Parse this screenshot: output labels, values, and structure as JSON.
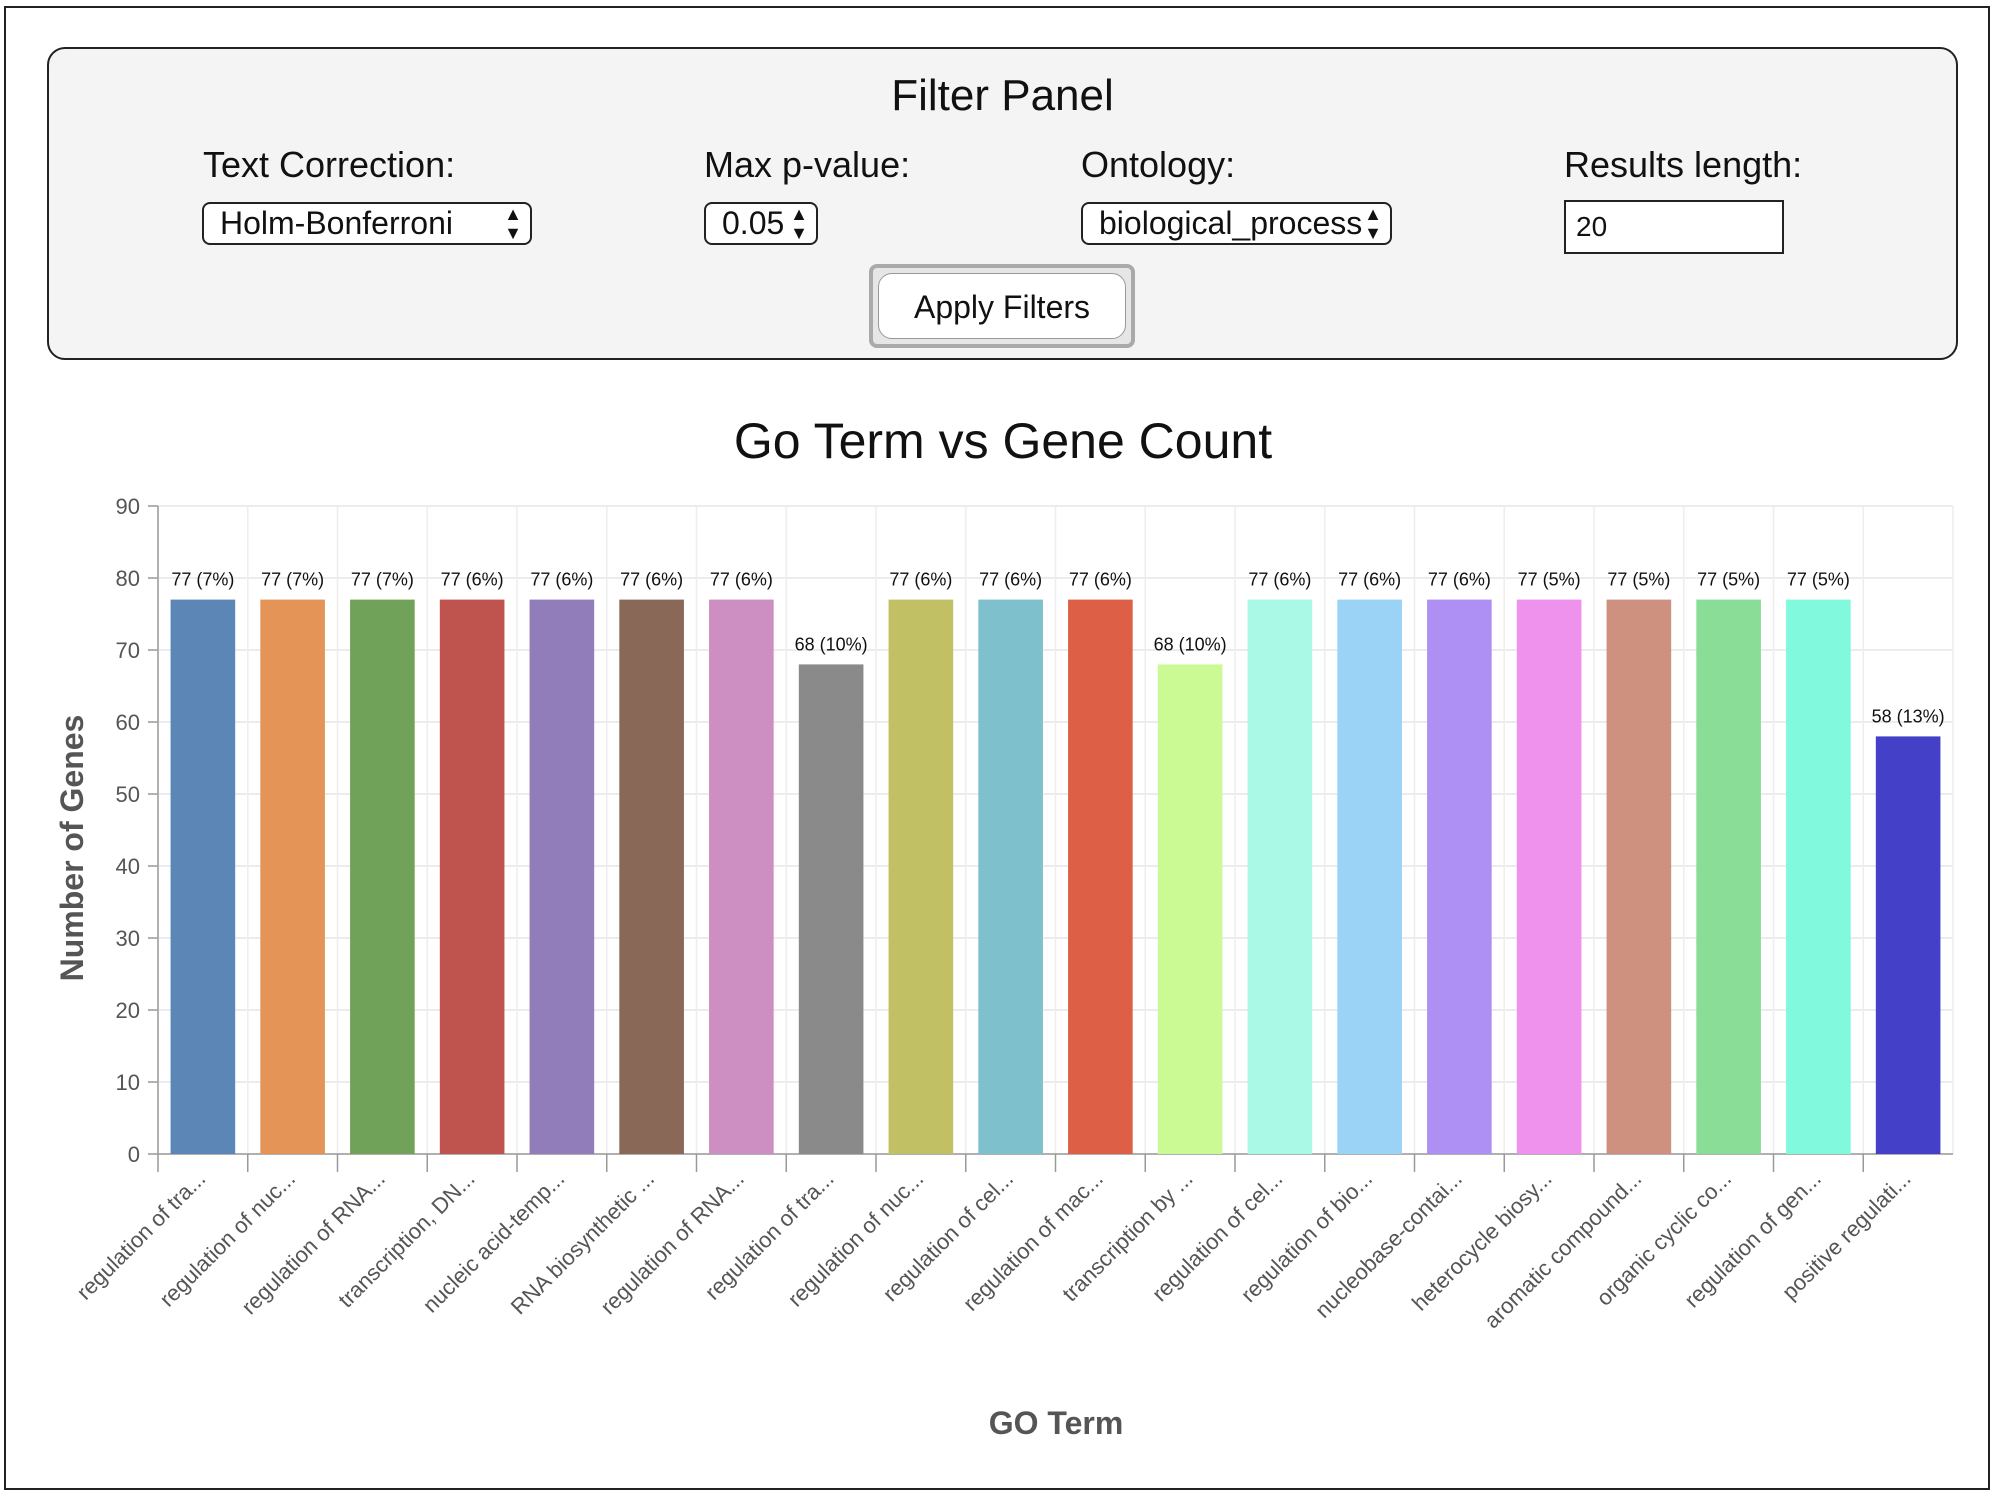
{
  "filter_panel": {
    "title": "Filter Panel",
    "text_correction": {
      "label": "Text Correction:",
      "value": "Holm-Bonferroni"
    },
    "max_p_value": {
      "label": "Max p-value:",
      "value": "0.05"
    },
    "ontology": {
      "label": "Ontology:",
      "value": "biological_process"
    },
    "results_length": {
      "label": "Results length:",
      "value": "20"
    },
    "apply_label": "Apply Filters",
    "arrow_up": "▲",
    "arrow_down": "▼"
  },
  "chart_data": {
    "type": "bar",
    "title": "Go Term vs Gene Count",
    "xlabel": "GO Term",
    "ylabel": "Number of Genes",
    "ylim": [
      0,
      90
    ],
    "yticks": [
      0,
      10,
      20,
      30,
      40,
      50,
      60,
      70,
      80,
      90
    ],
    "grid": true,
    "categories": [
      "regulation of tra...",
      "regulation of nuc...",
      "regulation of RNA...",
      "transcription, DN...",
      "nucleic acid-temp...",
      "RNA biosynthetic ...",
      "regulation of RNA...",
      "regulation of tra...",
      "regulation of nuc...",
      "regulation of cel...",
      "regulation of mac...",
      "transcription by ...",
      "regulation of cel...",
      "regulation of bio...",
      "nucleobase-contai...",
      "heterocycle biosy...",
      "aromatic compound...",
      "organic cyclic co...",
      "regulation of gen...",
      "positive regulati..."
    ],
    "values": [
      77,
      77,
      77,
      77,
      77,
      77,
      77,
      68,
      77,
      77,
      77,
      68,
      77,
      77,
      77,
      77,
      77,
      77,
      77,
      58
    ],
    "data_labels": [
      "77 (7%)",
      "77 (7%)",
      "77 (7%)",
      "77 (6%)",
      "77 (6%)",
      "77 (6%)",
      "77 (6%)",
      "68 (10%)",
      "77 (6%)",
      "77 (6%)",
      "77 (6%)",
      "68 (10%)",
      "77 (6%)",
      "77 (6%)",
      "77 (6%)",
      "77 (5%)",
      "77 (5%)",
      "77 (5%)",
      "77 (5%)",
      "58 (13%)"
    ],
    "colors": [
      "#5b86b6",
      "#e49456",
      "#70a25a",
      "#bf544f",
      "#917dba",
      "#8a6858",
      "#cd8ec2",
      "#8a8a8a",
      "#c2c064",
      "#7ec0cc",
      "#dd6046",
      "#cbf993",
      "#a9f9e6",
      "#9bd3f6",
      "#ae8ff4",
      "#ee92ee",
      "#ce9180",
      "#89dd97",
      "#80f9dd",
      "#4540c8"
    ]
  }
}
